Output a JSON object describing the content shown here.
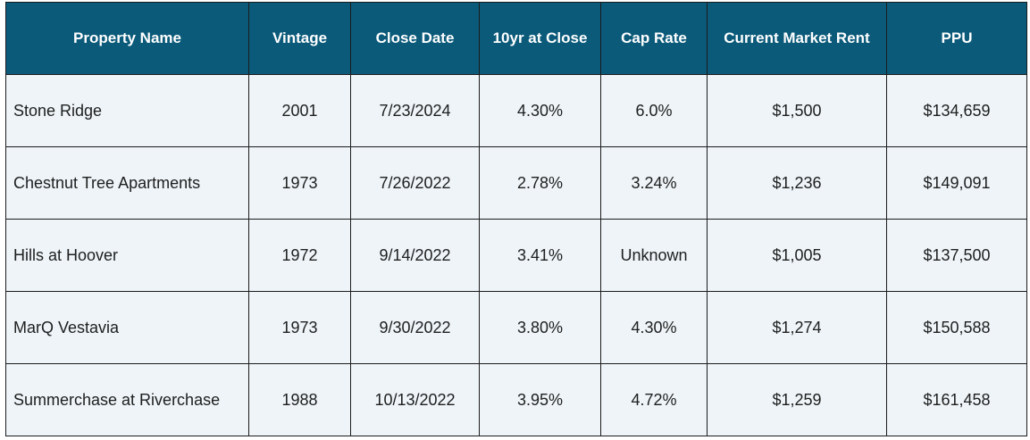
{
  "table": {
    "headers": {
      "property_name": "Property Name",
      "vintage": "Vintage",
      "close_date": "Close Date",
      "ten_yr": "10yr at Close",
      "cap_rate": "Cap Rate",
      "market_rent": "Current Market Rent",
      "ppu": "PPU"
    },
    "rows": [
      {
        "name": "Stone Ridge",
        "vintage": "2001",
        "close_date": "7/23/2024",
        "ten_yr": "4.30%",
        "cap_rate": "6.0%",
        "market_rent": "$1,500",
        "ppu": "$134,659"
      },
      {
        "name": "Chestnut Tree Apartments",
        "vintage": "1973",
        "close_date": "7/26/2022",
        "ten_yr": "2.78%",
        "cap_rate": "3.24%",
        "market_rent": "$1,236",
        "ppu": "$149,091"
      },
      {
        "name": "Hills at Hoover",
        "vintage": "1972",
        "close_date": "9/14/2022",
        "ten_yr": "3.41%",
        "cap_rate": "Unknown",
        "market_rent": "$1,005",
        "ppu": "$137,500"
      },
      {
        "name": "MarQ Vestavia",
        "vintage": "1973",
        "close_date": "9/30/2022",
        "ten_yr": "3.80%",
        "cap_rate": "4.30%",
        "market_rent": "$1,274",
        "ppu": "$150,588"
      },
      {
        "name": "Summerchase at Riverchase",
        "vintage": "1988",
        "close_date": "10/13/2022",
        "ten_yr": "3.95%",
        "cap_rate": "4.72%",
        "market_rent": "$1,259",
        "ppu": "$161,458"
      }
    ]
  },
  "colors": {
    "header_bg": "#0b5a7a",
    "header_text": "#ffffff",
    "cell_bg": "#eef4f8",
    "border": "#1c1c1c"
  }
}
